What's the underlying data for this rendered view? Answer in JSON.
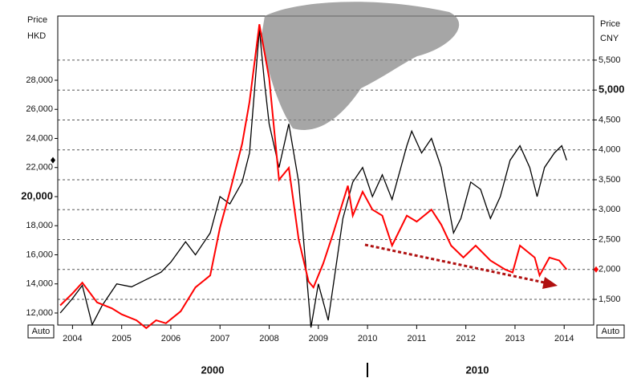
{
  "chart_data": {
    "type": "line",
    "left_axis_label": [
      "Price",
      "HKD"
    ],
    "right_axis_label": [
      "Price",
      "CNY"
    ],
    "auto_buttons": [
      "Auto",
      "Auto"
    ],
    "era_labels": [
      "2000",
      "2010"
    ],
    "xlim": [
      2003.7,
      2014.6
    ],
    "xticks": [
      2004,
      2005,
      2006,
      2007,
      2008,
      2009,
      2010,
      2011,
      2012,
      2013,
      2014
    ],
    "ylim": [
      11172,
      32414
    ],
    "yticks": [
      {
        "value": 12000,
        "label": "12,000"
      },
      {
        "value": 14000,
        "label": "14,000"
      },
      {
        "value": 16000,
        "label": "16,000"
      },
      {
        "value": 18000,
        "label": "18,000"
      },
      {
        "value": 20000,
        "label": "20,000"
      },
      {
        "value": 22000,
        "label": "22,000"
      },
      {
        "value": 24000,
        "label": "24,000"
      },
      {
        "value": 26000,
        "label": "26,000"
      },
      {
        "value": 28000,
        "label": "28,000"
      }
    ],
    "y2lim": [
      1071,
      6237
    ],
    "y2ticks": [
      {
        "value": 1500,
        "label": "1,500"
      },
      {
        "value": 2000,
        "label": "2,000"
      },
      {
        "value": 2500,
        "label": "2,500"
      },
      {
        "value": 3000,
        "label": "3,000"
      },
      {
        "value": 3500,
        "label": "3,500"
      },
      {
        "value": 4000,
        "label": "4,000"
      },
      {
        "value": 4500,
        "label": "4,500"
      },
      {
        "value": 5000,
        "label": "5,000"
      },
      {
        "value": 5500,
        "label": "5,500"
      }
    ],
    "grid": true,
    "series": [
      {
        "color": "#000000",
        "axis": "y",
        "x": [
          2003.75,
          2004.0,
          2004.2,
          2004.4,
          2004.6,
          2004.9,
          2005.2,
          2005.5,
          2005.8,
          2006.0,
          2006.3,
          2006.5,
          2006.8,
          2007.0,
          2007.2,
          2007.45,
          2007.6,
          2007.8,
          2007.9,
          2008.0,
          2008.2,
          2008.4,
          2008.6,
          2008.75,
          2008.85,
          2009.0,
          2009.2,
          2009.35,
          2009.5,
          2009.7,
          2009.9,
          2010.1,
          2010.3,
          2010.5,
          2010.8,
          2010.9,
          2011.1,
          2011.3,
          2011.5,
          2011.75,
          2011.9,
          2012.1,
          2012.3,
          2012.5,
          2012.7,
          2012.9,
          2013.1,
          2013.3,
          2013.45,
          2013.6,
          2013.8,
          2013.95,
          2014.05
        ],
        "values": [
          12000,
          13000,
          13900,
          11200,
          12500,
          14000,
          13800,
          14300,
          14800,
          15500,
          16900,
          16000,
          17500,
          20000,
          19500,
          21000,
          23000,
          31500,
          28000,
          25000,
          22000,
          25000,
          21000,
          15000,
          11000,
          14000,
          11500,
          15000,
          18500,
          21000,
          22000,
          20000,
          21500,
          19800,
          23500,
          24500,
          23000,
          24000,
          22000,
          17500,
          18500,
          21000,
          20500,
          18500,
          20000,
          22500,
          23500,
          22000,
          20000,
          22000,
          23000,
          23500,
          22500
        ]
      },
      {
        "color": "#ff0000",
        "axis": "y2",
        "x": [
          2003.75,
          2004.0,
          2004.2,
          2004.5,
          2004.8,
          2005.0,
          2005.3,
          2005.5,
          2005.7,
          2005.9,
          2006.2,
          2006.5,
          2006.8,
          2007.0,
          2007.2,
          2007.45,
          2007.6,
          2007.8,
          2008.0,
          2008.2,
          2008.4,
          2008.6,
          2008.8,
          2008.9,
          2009.1,
          2009.3,
          2009.6,
          2009.7,
          2009.9,
          2010.1,
          2010.3,
          2010.5,
          2010.8,
          2011.0,
          2011.3,
          2011.5,
          2011.7,
          2011.95,
          2012.2,
          2012.5,
          2012.8,
          2012.95,
          2013.1,
          2013.4,
          2013.5,
          2013.7,
          2013.9,
          2014.0,
          2014.05
        ],
        "values": [
          1400,
          1600,
          1780,
          1450,
          1350,
          1250,
          1150,
          1020,
          1150,
          1100,
          1300,
          1700,
          1900,
          2700,
          3300,
          4100,
          4800,
          6100,
          5200,
          3500,
          3700,
          2500,
          1800,
          1700,
          2100,
          2600,
          3400,
          2900,
          3300,
          3000,
          2900,
          2400,
          2900,
          2800,
          3000,
          2750,
          2400,
          2200,
          2400,
          2150,
          2000,
          1950,
          2400,
          2200,
          1900,
          2200,
          2150,
          2050,
          2000
        ]
      }
    ]
  }
}
